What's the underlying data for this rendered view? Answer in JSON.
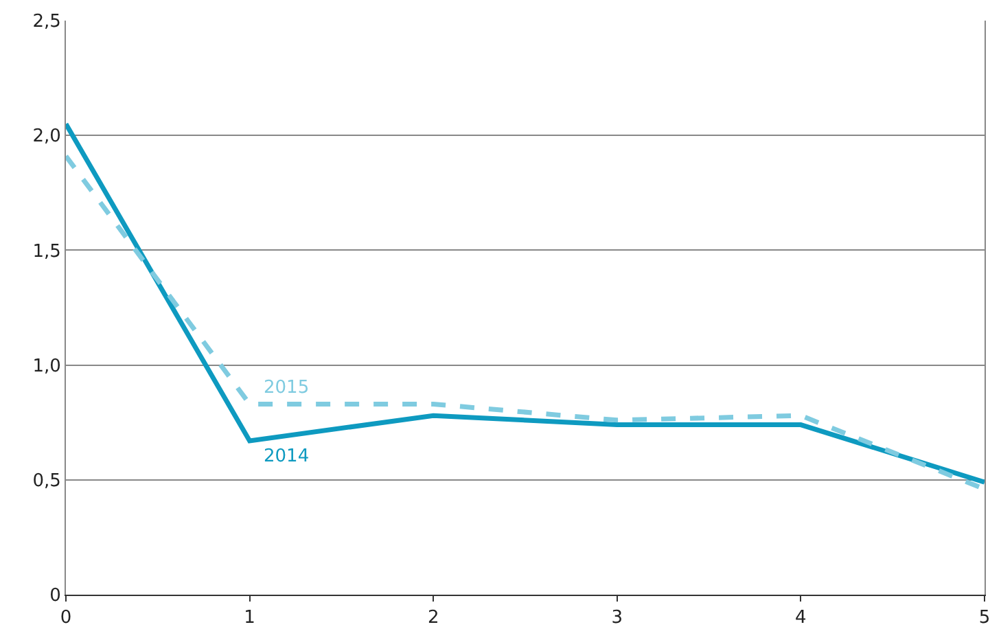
{
  "chart_data": {
    "type": "line",
    "x": [
      0,
      1,
      2,
      3,
      4,
      5
    ],
    "xlim": [
      0,
      5
    ],
    "xticks": [
      0,
      1,
      2,
      3,
      4,
      5
    ],
    "ylim": [
      0,
      2.5
    ],
    "yticks": [
      0,
      {
        "value": 0.5,
        "label": "0,5"
      },
      {
        "value": 1,
        "label": "1,0"
      },
      {
        "value": 1.5,
        "label": "1,5"
      },
      {
        "value": 2,
        "label": "2,0"
      },
      {
        "value": 2.5,
        "label": "2,5"
      }
    ],
    "grid": "y",
    "legend": false,
    "marker": "none",
    "series": [
      {
        "name": "2014",
        "color": "#0e9ac0",
        "line_style": "solid",
        "values": [
          2.05,
          0.67,
          0.78,
          0.74,
          0.74,
          0.49
        ]
      },
      {
        "name": "2015",
        "color": "#7fcbe0",
        "line_style": "dashed",
        "values": [
          1.91,
          0.83,
          0.83,
          0.76,
          0.78,
          0.46
        ]
      }
    ]
  }
}
